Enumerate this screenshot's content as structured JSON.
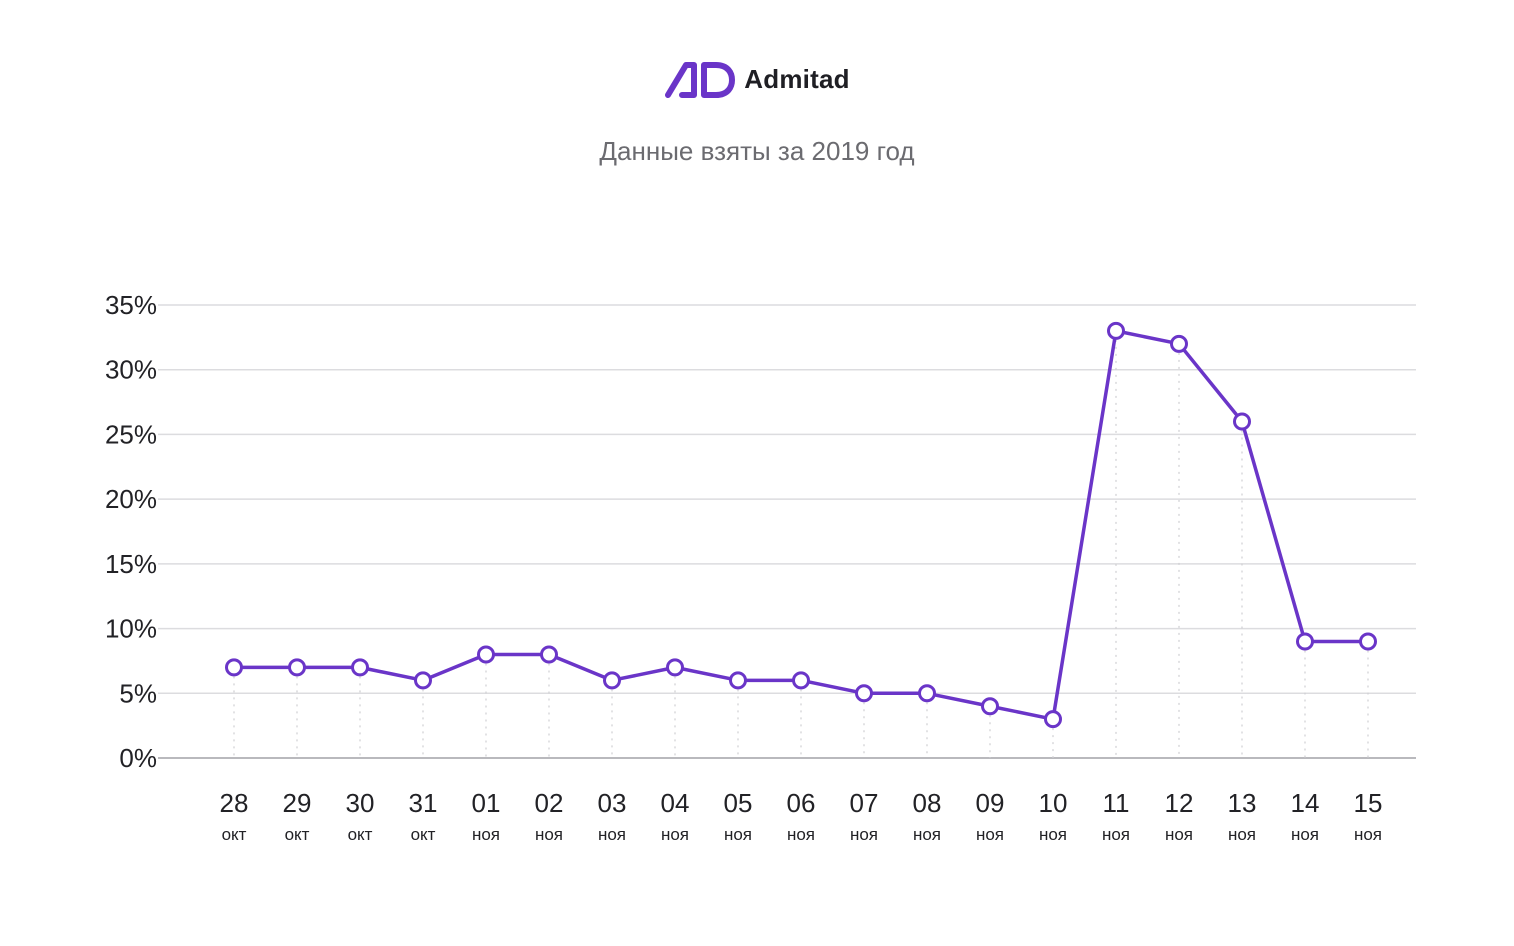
{
  "brand": {
    "name": "Admitad",
    "logo_text": "AD",
    "color": "#6a35c8"
  },
  "subtitle": "Данные взяты за 2019 год",
  "chart_data": {
    "type": "line",
    "title": "Данные взяты за 2019 год",
    "xlabel": "",
    "ylabel": "",
    "ylim": [
      0,
      35
    ],
    "y_ticks": [
      0,
      5,
      10,
      15,
      20,
      25,
      30,
      35
    ],
    "y_tick_labels": [
      "0%",
      "5%",
      "10%",
      "15%",
      "20%",
      "25%",
      "30%",
      "35%"
    ],
    "grid": true,
    "categories": [
      {
        "day": "28",
        "month": "окт"
      },
      {
        "day": "29",
        "month": "окт"
      },
      {
        "day": "30",
        "month": "окт"
      },
      {
        "day": "31",
        "month": "окт"
      },
      {
        "day": "01",
        "month": "ноя"
      },
      {
        "day": "02",
        "month": "ноя"
      },
      {
        "day": "03",
        "month": "ноя"
      },
      {
        "day": "04",
        "month": "ноя"
      },
      {
        "day": "05",
        "month": "ноя"
      },
      {
        "day": "06",
        "month": "ноя"
      },
      {
        "day": "07",
        "month": "ноя"
      },
      {
        "day": "08",
        "month": "ноя"
      },
      {
        "day": "09",
        "month": "ноя"
      },
      {
        "day": "10",
        "month": "ноя"
      },
      {
        "day": "11",
        "month": "ноя"
      },
      {
        "day": "12",
        "month": "ноя"
      },
      {
        "day": "13",
        "month": "ноя"
      },
      {
        "day": "14",
        "month": "ноя"
      },
      {
        "day": "15",
        "month": "ноя"
      }
    ],
    "series": [
      {
        "name": "value",
        "color": "#6a35c8",
        "values": [
          7,
          7,
          7,
          6,
          8,
          8,
          6,
          7,
          6,
          6,
          5,
          5,
          4,
          3,
          33,
          32,
          26,
          9,
          9
        ]
      }
    ]
  }
}
